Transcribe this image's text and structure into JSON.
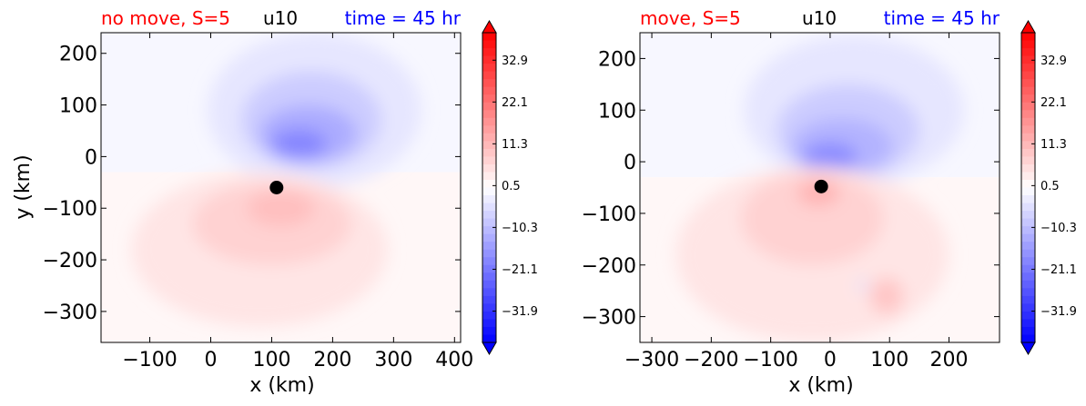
{
  "chart_data": [
    {
      "type": "heatmap",
      "panel": "left",
      "title_left": "no move, S=5",
      "title_center": "u10",
      "title_right": "time = 45 hr",
      "title_left_color": "#ff0000",
      "title_center_color": "#000000",
      "title_right_color": "#0000ff",
      "xlabel": "x (km)",
      "ylabel": "y (km)",
      "xlim": [
        -180,
        410
      ],
      "ylim": [
        -360,
        240
      ],
      "xticks": [
        -100,
        0,
        100,
        200,
        300,
        400
      ],
      "xtick_labels": [
        "−100",
        "0",
        "100",
        "200",
        "300",
        "400"
      ],
      "yticks": [
        200,
        100,
        0,
        -100,
        -200,
        -300
      ],
      "ytick_labels": [
        "200",
        "100",
        "0",
        "−100",
        "−200",
        "−300"
      ],
      "marker": {
        "x": 108,
        "y": -60,
        "color": "#000000"
      },
      "blobs": [
        {
          "x": 170,
          "y": 90,
          "rx": 175,
          "ry": 150,
          "value": -4
        },
        {
          "x": 165,
          "y": 70,
          "rx": 115,
          "ry": 95,
          "value": -8
        },
        {
          "x": 160,
          "y": 45,
          "rx": 80,
          "ry": 55,
          "value": -13
        },
        {
          "x": 145,
          "y": 25,
          "rx": 45,
          "ry": 28,
          "value": -19
        },
        {
          "x": 80,
          "y": -180,
          "rx": 210,
          "ry": 150,
          "value": 4
        },
        {
          "x": 100,
          "y": -130,
          "rx": 130,
          "ry": 80,
          "value": 7
        },
        {
          "x": 115,
          "y": -100,
          "rx": 55,
          "ry": 35,
          "value": 10
        }
      ],
      "colorbar": {
        "ticks": [
          32.9,
          22.1,
          11.3,
          0.5,
          -10.3,
          -21.1,
          -31.9
        ],
        "tick_labels": [
          "32.9",
          "22.1",
          "11.3",
          "0.5",
          "−10.3",
          "−21.1",
          "−31.9"
        ],
        "min": -40,
        "max": 40,
        "extend": "both",
        "colormap": "bwr"
      }
    },
    {
      "type": "heatmap",
      "panel": "right",
      "title_left": "move, S=5",
      "title_center": "u10",
      "title_right": "time = 45 hr",
      "title_left_color": "#ff0000",
      "title_center_color": "#000000",
      "title_right_color": "#0000ff",
      "xlabel": "x (km)",
      "ylabel": "",
      "xlim": [
        -320,
        285
      ],
      "ylim": [
        -350,
        250
      ],
      "xticks": [
        -300,
        -200,
        -100,
        0,
        100,
        200
      ],
      "xtick_labels": [
        "−300",
        "−200",
        "−100",
        "0",
        "100",
        "200"
      ],
      "yticks": [
        200,
        100,
        0,
        -100,
        -200,
        -300
      ],
      "ytick_labels": [
        "200",
        "100",
        "0",
        "−100",
        "−200",
        "−300"
      ],
      "marker": {
        "x": -15,
        "y": -48,
        "color": "#000000"
      },
      "blobs": [
        {
          "x": 40,
          "y": 100,
          "rx": 185,
          "ry": 145,
          "value": -4
        },
        {
          "x": 30,
          "y": 60,
          "rx": 120,
          "ry": 90,
          "value": -8
        },
        {
          "x": 20,
          "y": 30,
          "rx": 85,
          "ry": 55,
          "value": -12
        },
        {
          "x": 0,
          "y": 10,
          "rx": 45,
          "ry": 28,
          "value": -18
        },
        {
          "x": -30,
          "y": -180,
          "rx": 230,
          "ry": 170,
          "value": 4
        },
        {
          "x": -30,
          "y": -110,
          "rx": 120,
          "ry": 90,
          "value": 7
        },
        {
          "x": -20,
          "y": -60,
          "rx": 35,
          "ry": 25,
          "value": 12
        },
        {
          "x": 95,
          "y": -260,
          "rx": 28,
          "ry": 35,
          "value": 9
        },
        {
          "x": 55,
          "y": -240,
          "rx": 8,
          "ry": 12,
          "value": -5
        }
      ],
      "colorbar": {
        "ticks": [
          32.9,
          22.1,
          11.3,
          0.5,
          -10.3,
          -21.1,
          -31.9
        ],
        "tick_labels": [
          "32.9",
          "22.1",
          "11.3",
          "0.5",
          "−10.3",
          "−21.1",
          "−31.9"
        ],
        "min": -40,
        "max": 40,
        "extend": "both",
        "colormap": "bwr"
      }
    }
  ]
}
